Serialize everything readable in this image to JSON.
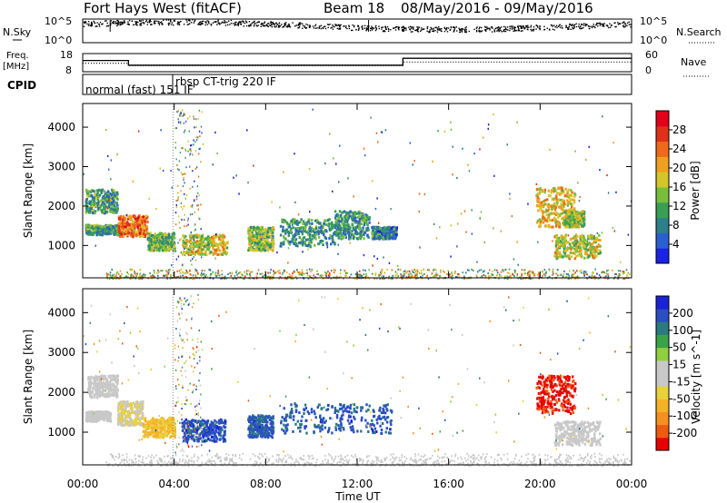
{
  "header": {
    "station": "Fort Hays West (fitACF)",
    "beam_label": "Beam 18",
    "date_range": "08/May/2016 - 09/May/2016"
  },
  "strip_panels": {
    "nsky": {
      "left_label": "N.Sky",
      "left_ticks": [
        "10^5",
        "10^0"
      ],
      "right_ticks": [
        "10^5",
        "10^0"
      ],
      "right_label": "N.Search"
    },
    "freq": {
      "left_label_top": "Freq.",
      "left_label_unit": "[MHz]",
      "left_ticks": [
        "18",
        "8"
      ],
      "right_ticks": [
        "60",
        "0"
      ],
      "right_label": "Nave",
      "freq_steps_utc_mhz": [
        [
          0,
          14.2
        ],
        [
          2.0,
          11.6
        ],
        [
          14.0,
          15.4
        ],
        [
          24,
          15.4
        ]
      ],
      "nave_steps_utc": [
        [
          0,
          28
        ],
        [
          2.0,
          20
        ],
        [
          14.0,
          32
        ],
        [
          24,
          32
        ]
      ]
    },
    "cpid": {
      "label": "CPID",
      "modes": [
        {
          "name": "normal (fast) 151 IF",
          "start_utc": 0
        },
        {
          "name": "rbsp CT-trig 220 IF",
          "start_utc": 4.0
        }
      ]
    }
  },
  "chart_data": [
    {
      "type": "heatmap",
      "name": "power",
      "ylabel": "Slant Range [km]",
      "xlabel": "Time UT",
      "xlim_utc_hours": [
        0,
        24
      ],
      "ylim_km": [
        180,
        4600
      ],
      "y_ticks": [
        1000,
        2000,
        3000,
        4000
      ],
      "x_ticklabels": [
        "00:00",
        "04:00",
        "08:00",
        "12:00",
        "16:00",
        "20:00",
        "00:00"
      ],
      "colorbar": {
        "label": "Power [dB]",
        "ticks": [
          "4",
          "8",
          "12",
          "16",
          "20",
          "24",
          "28"
        ],
        "range": [
          0,
          30
        ],
        "colors": [
          "#1a22e6",
          "#2a5fd0",
          "#2e7f8a",
          "#3a9e55",
          "#79be3b",
          "#d4c62a",
          "#f0a020",
          "#ee6a1a",
          "#e0301a",
          "#e2001a"
        ]
      },
      "echo_regions": [
        {
          "t": [
            0.1,
            1.6
          ],
          "r": [
            1300,
            1550
          ],
          "power": 10
        },
        {
          "t": [
            0.1,
            1.5
          ],
          "r": [
            1850,
            2450
          ],
          "power": 10
        },
        {
          "t": [
            1.5,
            2.8
          ],
          "r": [
            1250,
            1800
          ],
          "power": 22
        },
        {
          "t": [
            2.8,
            4.0
          ],
          "r": [
            900,
            1350
          ],
          "power": 12
        },
        {
          "t": [
            4.3,
            6.3
          ],
          "r": [
            800,
            1300
          ],
          "power": 16
        },
        {
          "t": [
            7.2,
            8.3
          ],
          "r": [
            900,
            1500
          ],
          "power": 13
        },
        {
          "t": [
            8.6,
            11.0
          ],
          "r": [
            1000,
            1700
          ],
          "power": 9
        },
        {
          "t": [
            11.0,
            12.5
          ],
          "r": [
            1200,
            1900
          ],
          "power": 9
        },
        {
          "t": [
            12.6,
            13.7
          ],
          "r": [
            1200,
            1500
          ],
          "power": 8
        },
        {
          "t": [
            19.8,
            21.5
          ],
          "r": [
            1500,
            2500
          ],
          "power": 18
        },
        {
          "t": [
            20.6,
            22.6
          ],
          "r": [
            700,
            1300
          ],
          "power": 16
        },
        {
          "t": [
            21.0,
            21.9
          ],
          "r": [
            1500,
            1900
          ],
          "power": 14
        }
      ],
      "ground_scatter_band_km": [
        180,
        420
      ]
    },
    {
      "type": "heatmap",
      "name": "velocity",
      "ylabel": "Slant Range [km]",
      "xlabel": "Time UT",
      "xlim_utc_hours": [
        0,
        24
      ],
      "ylim_km": [
        180,
        4600
      ],
      "y_ticks": [
        1000,
        2000,
        3000,
        4000
      ],
      "x_ticklabels": [
        "00:00",
        "04:00",
        "08:00",
        "12:00",
        "16:00",
        "20:00",
        "00:00"
      ],
      "colorbar": {
        "label": "Velocity [m s^-1]",
        "ticks": [
          "-200",
          "-100",
          "-50",
          "-15",
          "15",
          "50",
          "100",
          "200"
        ],
        "range": [
          -250,
          250
        ],
        "colors": [
          "#e60000",
          "#ee5a10",
          "#f39020",
          "#f5b226",
          "#e8d13a",
          "#c8c8c8",
          "#c8c8c8",
          "#8fcf40",
          "#3aa34a",
          "#2a7a80",
          "#2a4fc0",
          "#1a22d6"
        ]
      },
      "echo_regions": [
        {
          "t": [
            0.1,
            1.2
          ],
          "r": [
            1300,
            1550
          ],
          "vel": 0
        },
        {
          "t": [
            0.2,
            1.5
          ],
          "r": [
            1900,
            2450
          ],
          "vel": 0
        },
        {
          "t": [
            1.5,
            2.6
          ],
          "r": [
            1200,
            1800
          ],
          "vel": -40
        },
        {
          "t": [
            2.6,
            4.0
          ],
          "r": [
            900,
            1400
          ],
          "vel": -90
        },
        {
          "t": [
            4.3,
            6.2
          ],
          "r": [
            800,
            1350
          ],
          "vel": 190
        },
        {
          "t": [
            7.2,
            8.3
          ],
          "r": [
            900,
            1450
          ],
          "vel": 180
        },
        {
          "t": [
            8.6,
            13.5
          ],
          "r": [
            1000,
            1750
          ],
          "vel": 180
        },
        {
          "t": [
            19.8,
            21.5
          ],
          "r": [
            1500,
            2450
          ],
          "vel": -220
        },
        {
          "t": [
            20.6,
            22.6
          ],
          "r": [
            700,
            1300
          ],
          "vel": 0
        }
      ],
      "ground_scatter_band_km": [
        180,
        480
      ]
    }
  ]
}
